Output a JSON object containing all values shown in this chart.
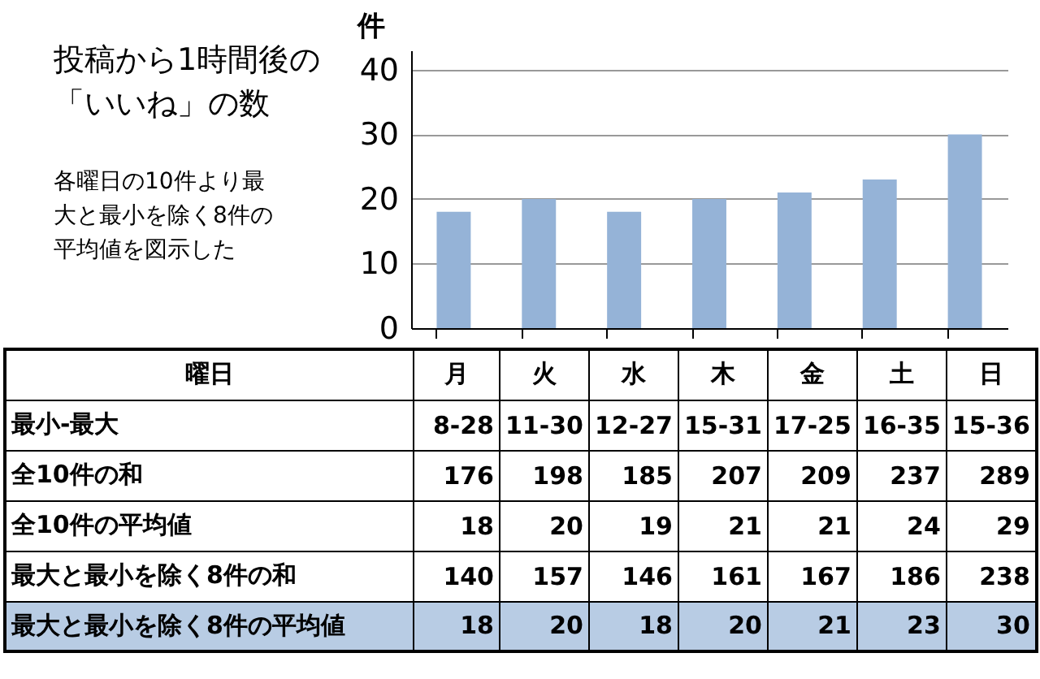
{
  "chart_data": {
    "type": "bar",
    "title": "投稿から1時間後の「いいね」の数",
    "subtitle": "各曜日の10件より最大と最小を除く8件の平均値を図示した",
    "ylabel": "件",
    "categories": [
      "月",
      "火",
      "水",
      "木",
      "金",
      "土",
      "日"
    ],
    "values": [
      18,
      20,
      18,
      20,
      21,
      23,
      30
    ],
    "color": "#95b3d7",
    "ylim": [
      0,
      43
    ],
    "yticks": [
      0,
      10,
      20,
      30,
      40
    ],
    "grid": "y",
    "data_labels": true,
    "annotations": [
      "曜日",
      "最小-最大",
      "8-28",
      "11-30",
      "12-27",
      "15-31",
      "17-25",
      "16-35",
      "15-36",
      "全10件の和",
      "176",
      "198",
      "185",
      "207",
      "209",
      "237",
      "289",
      "全10件の平均値",
      "18",
      "20",
      "19",
      "21",
      "21",
      "24",
      "29",
      "最大と最小を除く8件の和",
      "140",
      "157",
      "146",
      "161",
      "167",
      "186",
      "238",
      "最大と最小を除く8件の平均値"
    ]
  }
}
